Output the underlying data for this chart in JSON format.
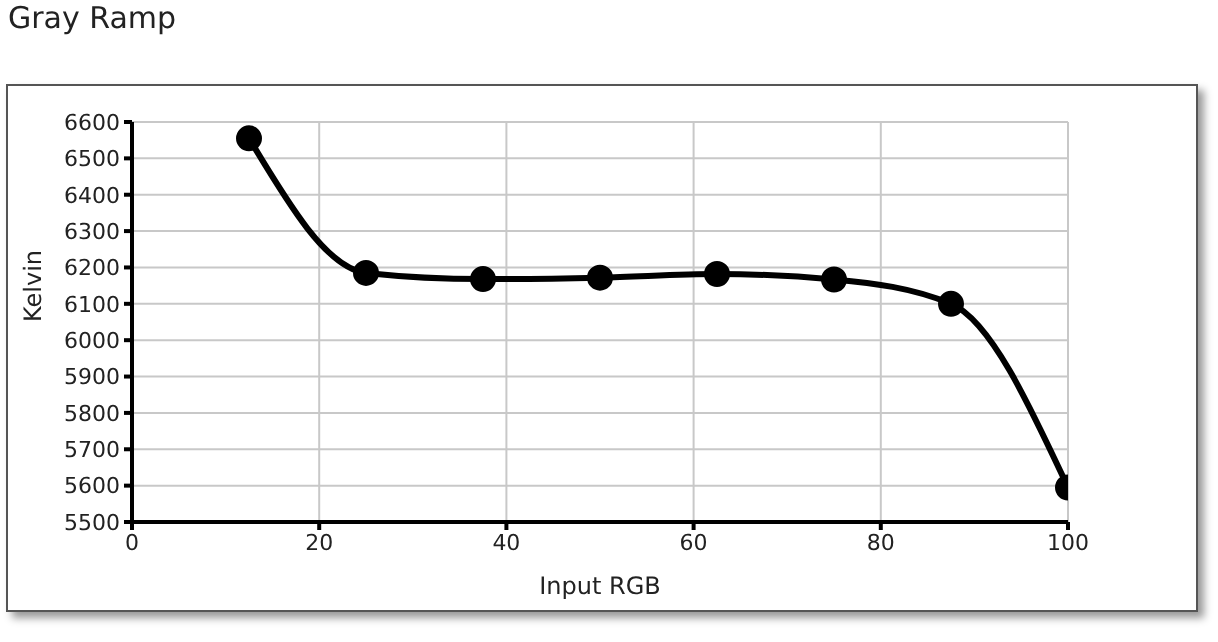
{
  "chart_data": {
    "type": "line",
    "title": "Gray Ramp",
    "xlabel": "Input RGB",
    "ylabel": "Kelvin",
    "x": [
      12.5,
      25,
      37.5,
      50,
      62.5,
      75,
      87.5,
      100
    ],
    "series": [
      {
        "color": "#000000",
        "values": [
          6555,
          6185,
          6168,
          6172,
          6182,
          6167,
          6100,
          5595
        ]
      }
    ],
    "xlim": [
      0,
      100
    ],
    "xticks": [
      0,
      20,
      40,
      60,
      80,
      100
    ],
    "ylim": [
      5500,
      6600
    ],
    "yticks": [
      5500,
      5600,
      5700,
      5800,
      5900,
      6000,
      6100,
      6200,
      6300,
      6400,
      6500,
      6600
    ],
    "grid": true,
    "marker": "circle",
    "line_style": "solid"
  }
}
